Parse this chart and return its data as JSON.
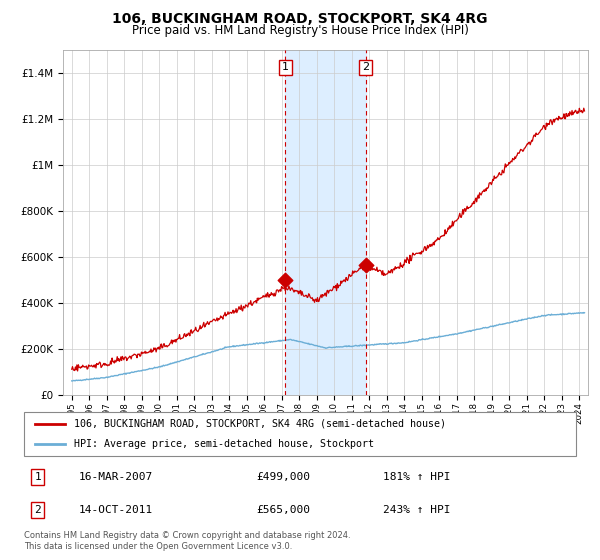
{
  "title": "106, BUCKINGHAM ROAD, STOCKPORT, SK4 4RG",
  "subtitle": "Price paid vs. HM Land Registry's House Price Index (HPI)",
  "footer1": "Contains HM Land Registry data © Crown copyright and database right 2024.",
  "footer2": "This data is licensed under the Open Government Licence v3.0.",
  "legend_line1": "106, BUCKINGHAM ROAD, STOCKPORT, SK4 4RG (semi-detached house)",
  "legend_line2": "HPI: Average price, semi-detached house, Stockport",
  "sale1_label": "1",
  "sale1_date": "16-MAR-2007",
  "sale1_price": "£499,000",
  "sale1_hpi": "181% ↑ HPI",
  "sale2_label": "2",
  "sale2_date": "14-OCT-2011",
  "sale2_price": "£565,000",
  "sale2_hpi": "243% ↑ HPI",
  "sale1_year": 2007.21,
  "sale2_year": 2011.79,
  "sale1_value": 499000,
  "sale2_value": 565000,
  "hpi_color": "#6baed6",
  "price_color": "#cc0000",
  "shade_color": "#ddeeff",
  "grid_color": "#cccccc",
  "ylim": [
    0,
    1500000
  ],
  "xlim_start": 1994.5,
  "xlim_end": 2024.5
}
